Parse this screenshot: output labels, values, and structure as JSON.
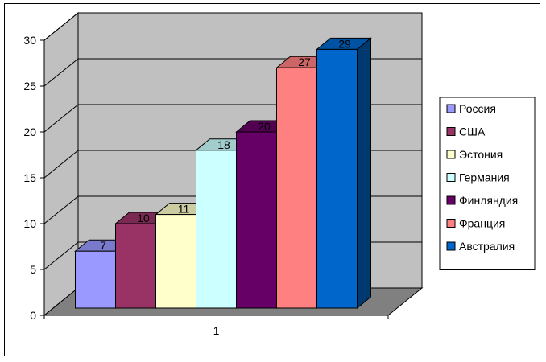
{
  "chart_data": {
    "type": "bar",
    "categories": [
      "1"
    ],
    "series": [
      {
        "name": "Россия",
        "values": [
          7
        ],
        "color": "#9999ff"
      },
      {
        "name": "США",
        "values": [
          10
        ],
        "color": "#993366"
      },
      {
        "name": "Эстония",
        "values": [
          11
        ],
        "color": "#ffffcc"
      },
      {
        "name": "Германия",
        "values": [
          18
        ],
        "color": "#ccffff"
      },
      {
        "name": "Финляндия",
        "values": [
          20
        ],
        "color": "#660066"
      },
      {
        "name": "Франция",
        "values": [
          27
        ],
        "color": "#ff8080"
      },
      {
        "name": "Австралия",
        "values": [
          29
        ],
        "color": "#0066cc"
      }
    ],
    "title": "",
    "xlabel": "",
    "ylabel": "",
    "ylim": [
      0,
      30
    ],
    "yticks": [
      0,
      5,
      10,
      15,
      20,
      25,
      30
    ],
    "grid": true,
    "legend_position": "right",
    "three_d": true,
    "wall_color": "#c0c0c0",
    "floor_color": "#808080"
  }
}
